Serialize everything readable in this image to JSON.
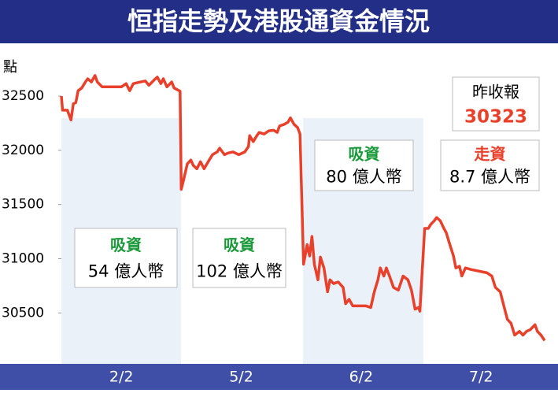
{
  "chart_data": {
    "type": "line",
    "title": "恒指走勢及港股通資金情況",
    "y_label": "點",
    "xlim": [
      0,
      4.05
    ],
    "xticks": [
      {
        "value": 0.5,
        "label": "2/2"
      },
      {
        "value": 1.5,
        "label": "5/2"
      },
      {
        "value": 2.5,
        "label": "6/2"
      },
      {
        "value": 3.5,
        "label": "7/2"
      }
    ],
    "ylim": [
      30030,
      32910
    ],
    "yticks": [
      30500,
      31000,
      31500,
      32000,
      32500
    ],
    "series": [
      {
        "color": "#e8402a",
        "x": [
          0,
          0.01,
          0.05,
          0.08,
          0.1,
          0.12,
          0.14,
          0.17,
          0.2,
          0.22,
          0.25,
          0.28,
          0.3,
          0.34,
          0.41,
          0.5,
          0.54,
          0.57,
          0.6,
          0.66,
          0.7,
          0.73,
          0.77,
          0.8,
          0.83,
          0.85,
          0.88,
          0.92,
          0.94,
          0.99,
          1.0,
          1.02,
          1.05,
          1.08,
          1.1,
          1.13,
          1.16,
          1.19,
          1.23,
          1.26,
          1.3,
          1.32,
          1.36,
          1.39,
          1.43,
          1.48,
          1.53,
          1.56,
          1.57,
          1.6,
          1.63,
          1.65,
          1.69,
          1.73,
          1.77,
          1.8,
          1.82,
          1.86,
          1.89,
          1.91,
          1.94,
          1.97,
          1.99,
          2.02,
          2.05,
          2.07,
          2.09,
          2.11,
          2.14,
          2.16,
          2.19,
          2.22,
          2.24,
          2.27,
          2.31,
          2.35,
          2.37,
          2.4,
          2.43,
          2.47,
          2.54,
          2.58,
          2.61,
          2.64,
          2.66,
          2.69,
          2.71,
          2.74,
          2.77,
          2.81,
          2.85,
          2.89,
          2.92,
          2.95,
          2.98,
          2.99,
          3.03,
          3.06,
          3.08,
          3.11,
          3.13,
          3.16,
          3.19,
          3.21,
          3.24,
          3.27,
          3.29,
          3.32,
          3.34,
          3.37,
          3.42,
          3.55,
          3.59,
          3.62,
          3.66,
          3.69,
          3.72,
          3.75,
          3.78,
          3.82,
          3.85,
          3.88,
          3.91,
          3.95,
          3.97,
          4.0,
          4.03
        ],
        "values": [
          32500,
          32370,
          32370,
          32280,
          32430,
          32440,
          32550,
          32575,
          32630,
          32660,
          32630,
          32690,
          32630,
          32585,
          32585,
          32585,
          32615,
          32550,
          32615,
          32630,
          32640,
          32600,
          32645,
          32675,
          32615,
          32660,
          32585,
          32630,
          32575,
          32545,
          31640,
          31730,
          31875,
          31910,
          31860,
          31830,
          31895,
          31830,
          31905,
          31960,
          31985,
          32020,
          31960,
          31975,
          31985,
          31960,
          31985,
          32035,
          32135,
          32080,
          32135,
          32165,
          32150,
          32180,
          32185,
          32165,
          32225,
          32240,
          32260,
          32300,
          32240,
          32210,
          32150,
          30950,
          31130,
          31025,
          31205,
          30950,
          30805,
          31015,
          30915,
          30695,
          30805,
          30770,
          30785,
          30735,
          30585,
          30625,
          30565,
          30565,
          30565,
          30550,
          30695,
          30805,
          30915,
          30840,
          30915,
          30830,
          30735,
          30710,
          30840,
          30805,
          30710,
          30535,
          30550,
          30515,
          31280,
          31280,
          31315,
          31350,
          31380,
          31350,
          31280,
          31240,
          31130,
          31025,
          30915,
          30930,
          30840,
          30915,
          30900,
          30870,
          30840,
          30735,
          30695,
          30565,
          30440,
          30405,
          30295,
          30330,
          30295,
          30330,
          30345,
          30390,
          30330,
          30295,
          30245
        ]
      }
    ],
    "annotations": [
      {
        "label": "吸資",
        "text": "54 億人幣",
        "color": "#1a9a3a"
      },
      {
        "label": "吸資",
        "text": "102 億人幣",
        "color": "#1a9a3a"
      },
      {
        "label": "吸資",
        "text": "80 億人幣",
        "color": "#1a9a3a"
      },
      {
        "label": "走資",
        "text": "8.7 億人幣",
        "color": "#e8402a"
      }
    ],
    "prev_close_label": "昨收報",
    "prev_close": 30323
  }
}
